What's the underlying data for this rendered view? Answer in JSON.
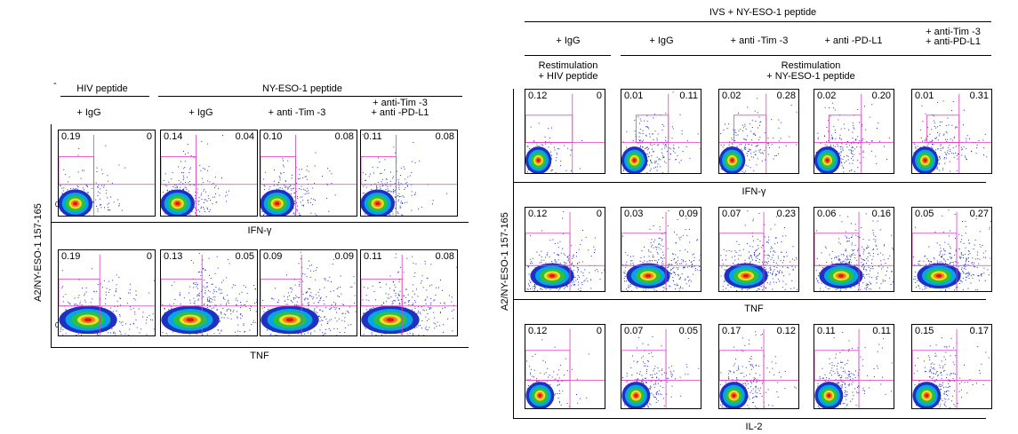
{
  "left": {
    "groups": {
      "hiv": "HIV peptide",
      "nyeso": "NY-ESO-1 peptide"
    },
    "columns": [
      "+ IgG",
      "+ IgG",
      "+ anti -Tim -3",
      "+ anti-Tim -3\n+ anti -PD-L1"
    ],
    "y_axis": "A2/NY-ESO-1 157-165",
    "rows": [
      {
        "x_axis": "IFN-γ",
        "values": [
          [
            "0.19",
            "0"
          ],
          [
            "0.14",
            "0.04"
          ],
          [
            "0.10",
            "0.08"
          ],
          [
            "0.11",
            "0.08"
          ]
        ]
      },
      {
        "x_axis": "TNF",
        "values": [
          [
            "0.19",
            "0"
          ],
          [
            "0.13",
            "0.05"
          ],
          [
            "0.09",
            "0.09"
          ],
          [
            "0.11",
            "0.08"
          ]
        ]
      }
    ],
    "tick_zero": "0",
    "dash_mark": "-"
  },
  "right": {
    "top_title": "IVS + NY-ESO-1 peptide",
    "columns": [
      "+ IgG",
      "+ IgG",
      "+ anti -Tim -3",
      "+ anti -PD-L1",
      "+ anti-Tim -3\n+ anti-PD-L1"
    ],
    "restim_hiv": "Restimulation\n+ HIV peptide",
    "restim_nyeso": "Restimulation\n+ NY-ESO-1 peptide",
    "y_axis": "A2/NY-ESO-1 157-165",
    "rows": [
      {
        "x_axis": "IFN-γ",
        "values": [
          [
            "0.12",
            "0"
          ],
          [
            "0.01",
            "0.11"
          ],
          [
            "0.02",
            "0.28"
          ],
          [
            "0.02",
            "0.20"
          ],
          [
            "0.01",
            "0.31"
          ]
        ]
      },
      {
        "x_axis": "TNF",
        "values": [
          [
            "0.12",
            "0"
          ],
          [
            "0.03",
            "0.09"
          ],
          [
            "0.07",
            "0.23"
          ],
          [
            "0.06",
            "0.16"
          ],
          [
            "0.05",
            "0.27"
          ]
        ]
      },
      {
        "x_axis": "IL-2",
        "values": [
          [
            "0.12",
            "0"
          ],
          [
            "0.07",
            "0.05"
          ],
          [
            "0.17",
            "0.12"
          ],
          [
            "0.11",
            "0.11"
          ],
          [
            "0.15",
            "0.17"
          ]
        ]
      }
    ]
  },
  "colors": {
    "gate": "#e040c0",
    "dot": "#2030c0",
    "axis": "#000000"
  }
}
